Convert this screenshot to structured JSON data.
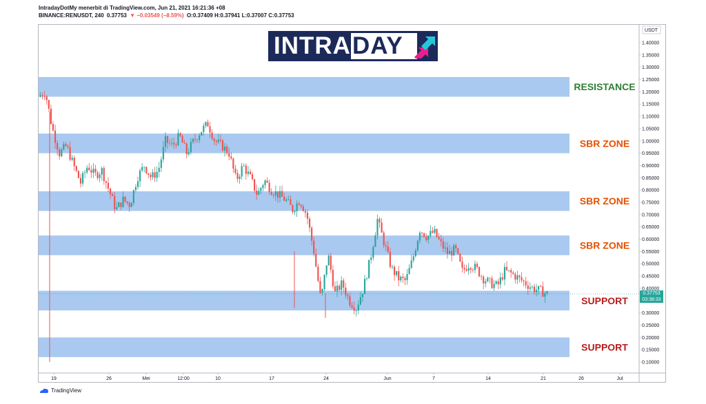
{
  "header": {
    "line1": "IntradayDotMy menerbit di TradingView.com, Jun 21, 2021 16:21:36 +08",
    "symbol": "BINANCE:RENUSDT, 240",
    "last": "0.37753",
    "change": "▼ −0.03549 (−8.59%)",
    "ohlc": "O:0.37409 H:0.37941 L:0.37007 C:0.37753"
  },
  "logo": {
    "text_a": "INTRA",
    "text_b": "DAY"
  },
  "footer": {
    "brand": "TradingView"
  },
  "colors": {
    "zone": "#a4c6ef",
    "up": "#26a69a",
    "down": "#ef5350",
    "resistance": "#2e7d32",
    "sbr": "#e65100",
    "support": "#b71c1c"
  },
  "price_tag": {
    "price": "0.37753",
    "timer": "03:38:33"
  },
  "chart_data": {
    "type": "candlestick",
    "y_axis_unit": "USDT",
    "ylim": [
      0.07,
      1.47
    ],
    "y_ticks": [
      "1.40000",
      "1.35000",
      "1.30000",
      "1.25000",
      "1.20000",
      "1.15000",
      "1.10000",
      "1.05000",
      "1.00000",
      "0.95000",
      "0.90000",
      "0.85000",
      "0.80000",
      "0.75000",
      "0.70000",
      "0.65000",
      "0.60000",
      "0.55000",
      "0.50000",
      "0.45000",
      "0.40000",
      "0.30000",
      "0.25000",
      "0.20000",
      "0.15000",
      "0.10000"
    ],
    "x_ticks": [
      "19",
      "26",
      "Mei",
      "12:00",
      "10",
      "17",
      "24",
      "Jun",
      "7",
      "14",
      "21",
      "26",
      "Jul"
    ],
    "zones": [
      {
        "label": "RESISTANCE",
        "type": "resistance",
        "low": 1.18,
        "high": 1.26
      },
      {
        "label": "SBR ZONE",
        "type": "sbr",
        "low": 0.95,
        "high": 1.03
      },
      {
        "label": "SBR ZONE",
        "type": "sbr",
        "low": 0.715,
        "high": 0.795
      },
      {
        "label": "SBR ZONE",
        "type": "sbr",
        "low": 0.535,
        "high": 0.615
      },
      {
        "label": "SUPPORT",
        "type": "support",
        "low": 0.31,
        "high": 0.39
      },
      {
        "label": "SUPPORT",
        "type": "support",
        "low": 0.12,
        "high": 0.2
      }
    ],
    "price_path": [
      1.18,
      1.2,
      1.05,
      0.95,
      0.98,
      0.9,
      0.83,
      0.9,
      0.86,
      0.88,
      0.8,
      0.72,
      0.76,
      0.74,
      0.85,
      0.9,
      0.85,
      0.88,
      1.0,
      0.98,
      1.02,
      0.95,
      1.0,
      1.04,
      1.07,
      1.0,
      0.98,
      0.95,
      0.84,
      0.9,
      0.85,
      0.78,
      0.84,
      0.8,
      0.78,
      0.76,
      0.72,
      0.76,
      0.7,
      0.55,
      0.35,
      0.54,
      0.38,
      0.42,
      0.35,
      0.32,
      0.4,
      0.52,
      0.68,
      0.58,
      0.48,
      0.44,
      0.43,
      0.52,
      0.64,
      0.61,
      0.63,
      0.58,
      0.54,
      0.56,
      0.47,
      0.5,
      0.48,
      0.44,
      0.42,
      0.41,
      0.47,
      0.46,
      0.44,
      0.42,
      0.4,
      0.39,
      0.3775
    ],
    "last_price": 0.37753
  }
}
